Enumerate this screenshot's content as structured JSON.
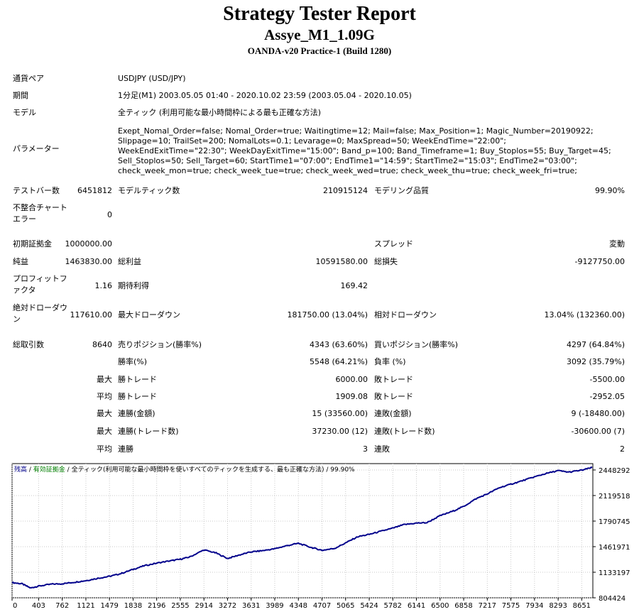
{
  "report": {
    "title": "Strategy Tester Report",
    "expert": "Assye_M1_1.09G",
    "server": "OANDA-v20 Practice-1 (Build 1280)"
  },
  "info": {
    "symbol_label": "通貨ペア",
    "symbol_value": "USDJPY (USD/JPY)",
    "period_label": "期間",
    "period_value": "1分足(M1) 2003.05.05 01:40 - 2020.10.02 23:59 (2003.05.04 - 2020.10.05)",
    "model_label": "モデル",
    "model_value": "全ティック (利用可能な最小時間枠による最も正確な方法)",
    "params_label": "パラメーター",
    "params_value": "Exept_Nomal_Order=false; Nomal_Order=true; Waitingtime=12; Mail=false; Max_Position=1; Magic_Number=20190922; Slippage=10; TrailSet=200; NomalLots=0.1; Levarage=0; MaxSpread=50; WeekEndTime=\"22:00\"; WeekEndExitTime=\"22:30\"; WeekDayExitTime=\"15:00\"; Band_p=100; Band_Timeframe=1; Buy_Stoplos=55; Buy_Target=45; Sell_Stoplos=50; Sell_Target=60; StartTime1=\"07:00\"; EndTime1=\"14:59\"; StartTime2=\"15:03\"; EndTime2=\"03:00\"; check_week_mon=true; check_week_tue=true; check_week_wed=true; check_week_thu=true; check_week_fri=true;"
  },
  "stats": {
    "bars_label": "テストバー数",
    "bars_value": "6451812",
    "ticks_label": "モデルティック数",
    "ticks_value": "210915124",
    "quality_label": "モデリング品質",
    "quality_value": "99.90%",
    "mismatch_label": "不整合チャートエラー",
    "mismatch_value": "0",
    "deposit_label": "初期証拠金",
    "deposit_value": "1000000.00",
    "spread_label": "スプレッド",
    "spread_value": "変動",
    "net_label": "純益",
    "net_value": "1463830.00",
    "gross_profit_label": "総利益",
    "gross_profit_value": "10591580.00",
    "gross_loss_label": "総損失",
    "gross_loss_value": "-9127750.00",
    "pf_label": "プロフィットファクタ",
    "pf_value": "1.16",
    "payoff_label": "期待利得",
    "payoff_value": "169.42",
    "abs_dd_label": "絶対ドローダウン",
    "abs_dd_value": "117610.00",
    "max_dd_label": "最大ドローダウン",
    "max_dd_value": "181750.00 (13.04%)",
    "rel_dd_label": "相対ドローダウン",
    "rel_dd_value": "13.04% (132360.00)",
    "trades_label": "総取引数",
    "trades_value": "8640",
    "short_label": "売りポジション(勝率%)",
    "short_value": "4343 (63.60%)",
    "long_label": "買いポジション(勝率%)",
    "long_value": "4297 (64.84%)",
    "win_label": "勝率(%)",
    "win_value": "5548 (64.21%)",
    "loss_label": "負率 (%)",
    "loss_value": "3092 (35.79%)",
    "max_word": "最大",
    "avg_word": "平均",
    "largest_win_label": "勝トレード",
    "largest_win_value": "6000.00",
    "largest_loss_label": "敗トレード",
    "largest_loss_value": "-5500.00",
    "avg_win_label": "勝トレード",
    "avg_win_value": "1909.08",
    "avg_loss_label": "敗トレード",
    "avg_loss_value": "-2952.05",
    "cons_wins_money_label": "連勝(金額)",
    "cons_wins_money_value": "15 (33560.00)",
    "cons_losses_money_label": "連敗(金額)",
    "cons_losses_money_value": "9 (-18480.00)",
    "cons_profit_label": "連勝(トレード数)",
    "cons_profit_value": "37230.00 (12)",
    "cons_loss_label": "連敗(トレード数)",
    "cons_loss_value": "-30600.00 (7)",
    "avg_cons_wins_label": "連勝",
    "avg_cons_wins_value": "3",
    "avg_cons_losses_label": "連敗",
    "avg_cons_losses_value": "2"
  },
  "chart_data": {
    "type": "line",
    "legend": {
      "balance": "残高",
      "sep1": " / ",
      "margin": "有効証拠金",
      "sep2": " / ",
      "model": "全ティック(利用可能な最小時間枠を使いすべてのティックを生成する、最も正確な方法)",
      "sep3": " / ",
      "quality": "99.90%"
    },
    "legend_placement": "top-left",
    "grid": true,
    "x_ticks": [
      0,
      403,
      762,
      1121,
      1479,
      1838,
      2196,
      2555,
      2914,
      3272,
      3631,
      3989,
      4348,
      4707,
      5065,
      5424,
      5782,
      6141,
      6500,
      6858,
      7217,
      7575,
      7934,
      8293,
      8651
    ],
    "y_ticks": [
      804424,
      1133197,
      1461971,
      1790745,
      2119518,
      2448292
    ],
    "xlim": [
      0,
      8820
    ],
    "ylim": [
      804424,
      2530000
    ],
    "series": [
      {
        "color": "#00008b",
        "x": [
          0,
          150,
          280,
          403,
          600,
          762,
          950,
          1121,
          1300,
          1479,
          1650,
          1838,
          2000,
          2196,
          2400,
          2555,
          2700,
          2914,
          3100,
          3272,
          3450,
          3631,
          3800,
          3989,
          4150,
          4348,
          4550,
          4707,
          4900,
          5065,
          5250,
          5424,
          5600,
          5782,
          5950,
          6141,
          6300,
          6500,
          6700,
          6858,
          7050,
          7217,
          7400,
          7575,
          7750,
          7934,
          8100,
          8293,
          8450,
          8651,
          8810
        ],
        "y": [
          1000000,
          985000,
          930000,
          955000,
          980000,
          985000,
          1005000,
          1025000,
          1055000,
          1080000,
          1115000,
          1170000,
          1215000,
          1250000,
          1280000,
          1300000,
          1330000,
          1420000,
          1380000,
          1310000,
          1355000,
          1395000,
          1410000,
          1435000,
          1470000,
          1505000,
          1450000,
          1415000,
          1440000,
          1510000,
          1590000,
          1620000,
          1660000,
          1700000,
          1745000,
          1765000,
          1770000,
          1860000,
          1920000,
          1980000,
          2080000,
          2140000,
          2220000,
          2265000,
          2310000,
          2360000,
          2400000,
          2440000,
          2420000,
          2445000,
          2480000
        ]
      }
    ]
  }
}
